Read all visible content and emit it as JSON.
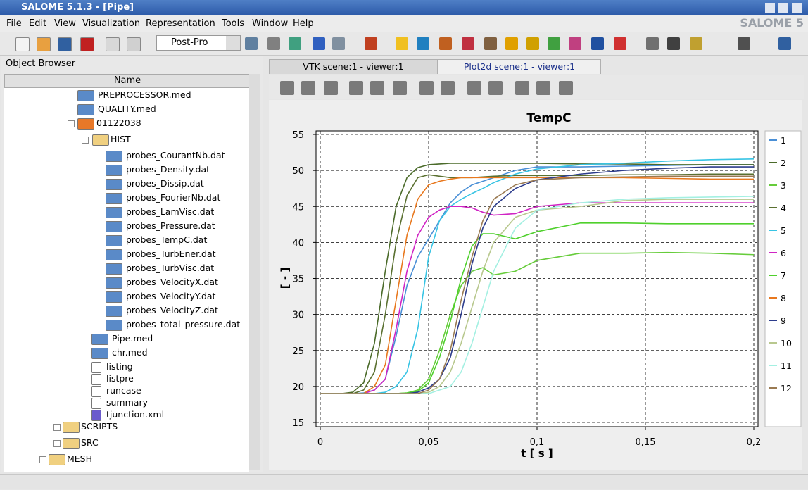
{
  "window": {
    "title": "SALOME 5.1.3 - [Pipe]",
    "brand": "SALOME 5"
  },
  "menu": [
    "File",
    "Edit",
    "View",
    "Visualization",
    "Representation",
    "Tools",
    "Window",
    "Help"
  ],
  "toolbar": {
    "module": "Post-Pro"
  },
  "object_browser": {
    "title": "Object Browser",
    "column": "Name",
    "items": [
      "PREPROCESSOR.med",
      "QUALITY.med",
      "01122038",
      "HIST",
      "probes_CourantNb.dat",
      "probes_Density.dat",
      "probes_Dissip.dat",
      "probes_FourierNb.dat",
      "probes_LamVisc.dat",
      "probes_Pressure.dat",
      "probes_TempC.dat",
      "probes_TurbEner.dat",
      "probes_TurbVisc.dat",
      "probes_VelocityX.dat",
      "probes_VelocityY.dat",
      "probes_VelocityZ.dat",
      "probes_total_pressure.dat",
      "Pipe.med",
      "chr.med",
      "listing",
      "listpre",
      "runcase",
      "summary",
      "tjunction.xml",
      "SCRIPTS",
      "SRC",
      "MESH"
    ]
  },
  "tabs": [
    "VTK scene:1 - viewer:1",
    "Plot2d scene:1 - viewer:1"
  ],
  "chart_data": {
    "type": "line",
    "title": "TempC",
    "x_label": "t [ s ]",
    "y_label": "[ - ]",
    "x": [
      0,
      0.01,
      0.015,
      0.02,
      0.025,
      0.03,
      0.035,
      0.04,
      0.045,
      0.05,
      0.055,
      0.06,
      0.065,
      0.07,
      0.075,
      0.08,
      0.09,
      0.1,
      0.12,
      0.14,
      0.16,
      0.18,
      0.2
    ],
    "xlim": [
      0,
      0.2
    ],
    "xticks": [
      0,
      {
        "value": 0.05,
        "label": "0,05"
      },
      {
        "value": 0.1,
        "label": "0,1"
      },
      {
        "value": 0.15,
        "label": "0,15"
      },
      {
        "value": 0.2,
        "label": "0,2"
      }
    ],
    "ylim": [
      15,
      55
    ],
    "yticks": [
      15,
      20,
      25,
      30,
      35,
      40,
      45,
      50,
      55
    ],
    "grid": true,
    "legend": "right",
    "series": [
      {
        "name": "1",
        "color": "#4a8fd6",
        "values": [
          19,
          19,
          19,
          19.1,
          19.5,
          21,
          27,
          34,
          38,
          40.5,
          43,
          45.5,
          47,
          48,
          48.5,
          49,
          50,
          50.5,
          50.5,
          50.6,
          50.7,
          50.8,
          50.8
        ]
      },
      {
        "name": "2",
        "color": "#4b6b2a",
        "values": [
          19,
          19,
          19.2,
          20.5,
          26,
          36,
          45,
          49,
          50.4,
          50.8,
          50.9,
          51,
          51,
          51,
          51,
          51,
          51,
          51,
          50.9,
          50.9,
          50.8,
          50.8,
          50.8
        ]
      },
      {
        "name": "3",
        "color": "#66cc3a",
        "values": [
          19,
          19,
          19,
          19,
          19,
          19,
          19,
          19.1,
          19.5,
          21,
          25,
          30,
          34,
          36,
          36.5,
          35.5,
          36,
          37.5,
          38.5,
          38.5,
          38.6,
          38.5,
          38.3
        ]
      },
      {
        "name": "4",
        "color": "#5a7030",
        "values": [
          19,
          19,
          19,
          19.5,
          22,
          30,
          40,
          46.5,
          49,
          49.4,
          49.2,
          49,
          49,
          49,
          49.1,
          49.2,
          49.3,
          49.3,
          49.3,
          49.4,
          49.4,
          49.5,
          49.5
        ]
      },
      {
        "name": "5",
        "color": "#38c4e4",
        "values": [
          19,
          19,
          19,
          19,
          19,
          19.2,
          20,
          22,
          28,
          38,
          43,
          45,
          46,
          46.8,
          47.5,
          48.3,
          49.5,
          50.2,
          50.8,
          51,
          51.3,
          51.5,
          51.6
        ]
      },
      {
        "name": "6",
        "color": "#d024c4",
        "values": [
          19,
          19,
          19,
          19,
          19.5,
          21,
          28,
          36,
          41,
          43.5,
          44.5,
          45,
          45,
          44.8,
          44.2,
          43.8,
          44,
          45,
          45.5,
          45.5,
          45.5,
          45.5,
          45.5
        ]
      },
      {
        "name": "7",
        "color": "#4fd02c",
        "values": [
          19,
          19,
          19,
          19,
          19,
          19,
          19,
          19.1,
          19.3,
          20.5,
          24,
          29,
          35,
          39.5,
          41.2,
          41.2,
          40.5,
          41.5,
          42.7,
          42.7,
          42.6,
          42.6,
          42.6
        ]
      },
      {
        "name": "8",
        "color": "#e8781e",
        "values": [
          19,
          19,
          19,
          19,
          20,
          23,
          32,
          41,
          46,
          48,
          48.5,
          48.8,
          49,
          49,
          49,
          49,
          49,
          49,
          49,
          49,
          48.9,
          48.8,
          48.8
        ]
      },
      {
        "name": "9",
        "color": "#2c3c8c",
        "values": [
          19,
          19,
          19,
          19,
          19,
          19,
          19,
          19,
          19.2,
          19.8,
          21,
          24,
          30,
          37,
          42,
          45,
          47.5,
          48.7,
          49.5,
          50,
          50.3,
          50.5,
          50.5
        ]
      },
      {
        "name": "10",
        "color": "#b8c88e",
        "values": [
          19,
          19,
          19,
          19,
          19,
          19,
          19,
          19,
          19,
          19.2,
          20,
          22,
          26,
          31,
          36,
          40,
          43.5,
          44.5,
          45,
          45.8,
          46,
          46,
          46
        ]
      },
      {
        "name": "11",
        "color": "#a4f0e2",
        "values": [
          19,
          19,
          19,
          19,
          19,
          19,
          19,
          19,
          19,
          19,
          19.5,
          20,
          22,
          26,
          31,
          36,
          42,
          44.5,
          45.5,
          46,
          46.2,
          46.3,
          46.4
        ]
      },
      {
        "name": "12",
        "color": "#9a7a52",
        "values": [
          19,
          19,
          19,
          19,
          19,
          19,
          19,
          19,
          19,
          19.5,
          21,
          25,
          32,
          38,
          43,
          46,
          48,
          48.7,
          49,
          49.1,
          49.2,
          49.2,
          49.2
        ]
      }
    ]
  }
}
